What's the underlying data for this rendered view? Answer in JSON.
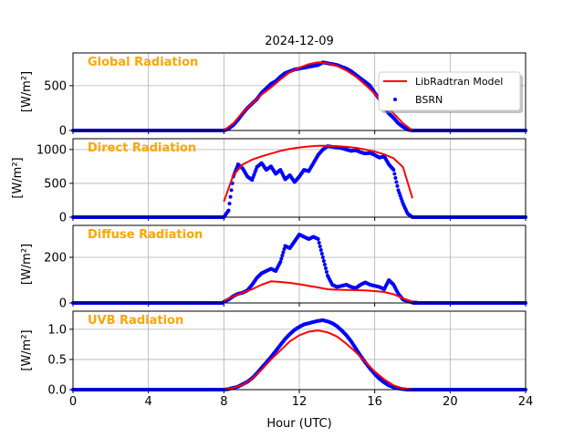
{
  "chart_data": {
    "type": "line",
    "title": "2024-12-09",
    "xlabel": "Hour (UTC)",
    "xlim": [
      0,
      24
    ],
    "xticks": [
      0,
      4,
      8,
      12,
      16,
      20,
      24
    ],
    "legend": {
      "entries": [
        "LibRadtran Model",
        "BSRN"
      ],
      "placement": "upper-right of first panel"
    },
    "colors": {
      "model": "#ff0000",
      "bsrn": "#0000ff",
      "label": "#FFA500",
      "grid": "#b0b0b0"
    },
    "grid": true,
    "model_hours": [
      8,
      8.5,
      9,
      9.5,
      10,
      10.5,
      11,
      11.5,
      12,
      12.5,
      13,
      13.5,
      14,
      14.5,
      15,
      15.5,
      16,
      16.5,
      17,
      17.5,
      18
    ],
    "bsrn_start_hour": 8,
    "bsrn_step_hours": 0.25,
    "bsrn_night_value": 0,
    "panels": [
      {
        "label": "Global Radiation",
        "ylabel": "[W/m²]",
        "ylim": [
          0,
          865
        ],
        "yticks": [
          "0",
          "500"
        ],
        "ytick_values": [
          0,
          500
        ],
        "model": [
          0,
          80,
          200,
          300,
          400,
          480,
          570,
          650,
          700,
          740,
          760,
          750,
          720,
          670,
          600,
          510,
          410,
          300,
          190,
          80,
          0
        ],
        "bsrn": [
          0,
          20,
          60,
          120,
          190,
          250,
          300,
          350,
          420,
          470,
          520,
          550,
          600,
          640,
          660,
          680,
          690,
          700,
          710,
          720,
          730,
          760,
          750,
          740,
          730,
          710,
          690,
          660,
          620,
          580,
          540,
          500,
          420,
          350,
          260,
          190,
          140,
          80,
          40,
          10,
          0
        ]
      },
      {
        "label": "Direct Radiation",
        "ylabel": "[W/m²]",
        "ylim": [
          0,
          1160
        ],
        "yticks": [
          "0",
          "500",
          "1000"
        ],
        "ytick_values": [
          0,
          500,
          1000
        ],
        "model": [
          230,
          620,
          780,
          850,
          900,
          940,
          980,
          1010,
          1030,
          1045,
          1055,
          1055,
          1050,
          1040,
          1025,
          1000,
          970,
          930,
          870,
          740,
          280
        ],
        "bsrn": [
          0,
          100,
          600,
          780,
          720,
          600,
          550,
          740,
          800,
          700,
          750,
          640,
          700,
          560,
          620,
          520,
          600,
          700,
          680,
          800,
          920,
          1000,
          1050,
          1040,
          1030,
          1020,
          1000,
          980,
          990,
          960,
          940,
          950,
          920,
          880,
          900,
          780,
          700,
          400,
          200,
          50,
          0
        ]
      },
      {
        "label": "Diffuse Radiation",
        "ylabel": "[W/m²]",
        "ylim": [
          0,
          340
        ],
        "yticks": [
          "0",
          "200"
        ],
        "ytick_values": [
          0,
          200
        ],
        "model": [
          10,
          30,
          45,
          60,
          80,
          95,
          92,
          88,
          82,
          75,
          68,
          60,
          58,
          57,
          56,
          55,
          52,
          48,
          38,
          20,
          5
        ],
        "bsrn": [
          5,
          15,
          30,
          40,
          45,
          55,
          80,
          110,
          130,
          140,
          150,
          140,
          180,
          250,
          240,
          270,
          300,
          290,
          280,
          290,
          280,
          200,
          120,
          80,
          70,
          75,
          80,
          70,
          65,
          80,
          90,
          80,
          75,
          70,
          60,
          100,
          80,
          40,
          15,
          8,
          2
        ]
      },
      {
        "label": "UVB Radiation",
        "ylabel": "[W/m²]",
        "ylim": [
          0,
          1.3
        ],
        "yticks": [
          "0.0",
          "0.5",
          "1.0"
        ],
        "ytick_values": [
          0,
          0.5,
          1.0
        ],
        "model": [
          0,
          0.03,
          0.08,
          0.18,
          0.33,
          0.5,
          0.65,
          0.8,
          0.9,
          0.96,
          0.98,
          0.95,
          0.88,
          0.76,
          0.62,
          0.46,
          0.3,
          0.17,
          0.07,
          0.02,
          0
        ],
        "bsrn": [
          0,
          0.01,
          0.03,
          0.05,
          0.09,
          0.13,
          0.19,
          0.27,
          0.36,
          0.45,
          0.54,
          0.64,
          0.74,
          0.84,
          0.92,
          0.99,
          1.04,
          1.08,
          1.1,
          1.12,
          1.14,
          1.15,
          1.13,
          1.1,
          1.05,
          0.98,
          0.9,
          0.8,
          0.68,
          0.56,
          0.45,
          0.35,
          0.26,
          0.18,
          0.12,
          0.07,
          0.04,
          0.02,
          0.01,
          0,
          0
        ]
      }
    ]
  }
}
